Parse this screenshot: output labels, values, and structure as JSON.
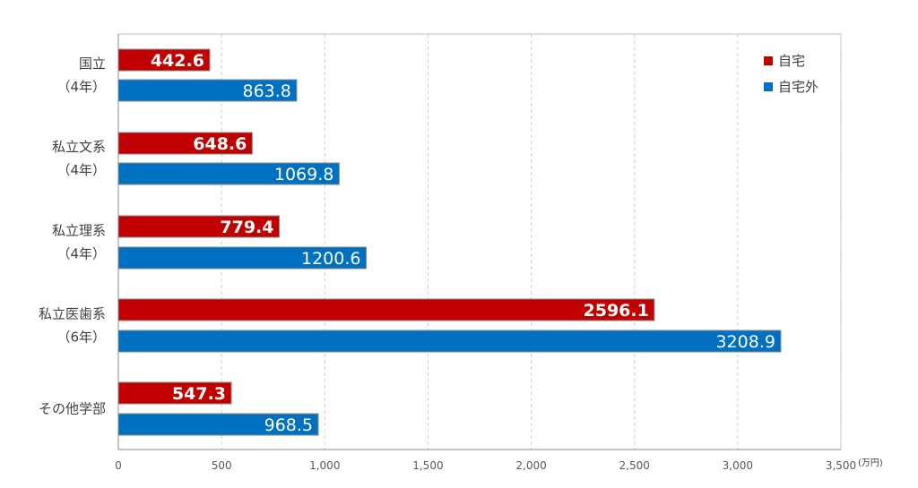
{
  "chart_data": {
    "type": "bar",
    "orientation": "horizontal",
    "categories": [
      [
        "国立",
        "（4年）"
      ],
      [
        "私立文系",
        "（4年）"
      ],
      [
        "私立理系",
        "（4年）"
      ],
      [
        "私立医歯系",
        "（6年）"
      ],
      [
        "その他学部"
      ]
    ],
    "series": [
      {
        "name": "自宅",
        "color": "#C00000",
        "values": [
          442.6,
          648.6,
          779.4,
          2596.1,
          547.3
        ]
      },
      {
        "name": "自宅外",
        "color": "#0070C0",
        "values": [
          863.8,
          1069.8,
          1200.6,
          3208.9,
          968.5
        ]
      }
    ],
    "value_labels": [
      [
        "442.6",
        "648.6",
        "779.4",
        "2596.1",
        "547.3"
      ],
      [
        "863.8",
        "1069.8",
        "1200.6",
        "3208.9",
        "968.5"
      ]
    ],
    "xlim": [
      0,
      3500
    ],
    "xticks": [
      0,
      500,
      1000,
      1500,
      2000,
      2500,
      3000,
      3500
    ],
    "xtick_labels": [
      "0",
      "500",
      "1,000",
      "1,500",
      "2,000",
      "2,500",
      "3,000",
      "3,500"
    ],
    "unit_label": "(万円)",
    "grid": "vertical dashed",
    "legend_position": "top-right"
  }
}
